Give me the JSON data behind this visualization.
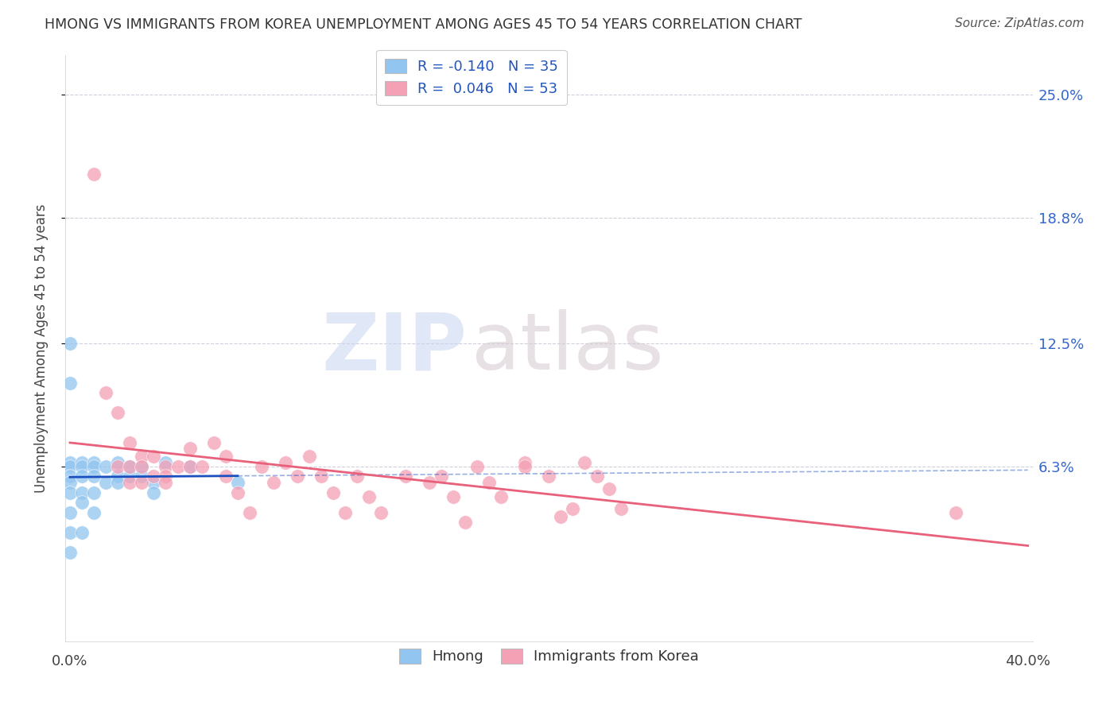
{
  "title": "HMONG VS IMMIGRANTS FROM KOREA UNEMPLOYMENT AMONG AGES 45 TO 54 YEARS CORRELATION CHART",
  "source": "Source: ZipAtlas.com",
  "ylabel": "Unemployment Among Ages 45 to 54 years",
  "ytick_labels": [
    "25.0%",
    "18.8%",
    "12.5%",
    "6.3%"
  ],
  "ytick_values": [
    0.25,
    0.188,
    0.125,
    0.063
  ],
  "xlim": [
    0.0,
    0.4
  ],
  "ylim": [
    -0.025,
    0.27
  ],
  "hmong_color": "#92C5F0",
  "korea_color": "#F4A0B5",
  "trend_hmong_color": "#1A4FBF",
  "trend_korea_color": "#E8607A",
  "background_color": "#FFFFFF",
  "watermark_zip": "ZIP",
  "watermark_atlas": "atlas",
  "hmong_x": [
    0.0,
    0.0,
    0.0,
    0.0,
    0.0,
    0.0,
    0.0,
    0.0,
    0.0,
    0.0,
    0.005,
    0.005,
    0.005,
    0.005,
    0.005,
    0.005,
    0.01,
    0.01,
    0.01,
    0.01,
    0.01,
    0.015,
    0.015,
    0.02,
    0.02,
    0.02,
    0.025,
    0.025,
    0.03,
    0.03,
    0.035,
    0.035,
    0.04,
    0.05,
    0.07
  ],
  "hmong_y": [
    0.125,
    0.105,
    0.065,
    0.063,
    0.058,
    0.055,
    0.05,
    0.04,
    0.03,
    0.02,
    0.065,
    0.063,
    0.058,
    0.05,
    0.045,
    0.03,
    0.065,
    0.063,
    0.058,
    0.05,
    0.04,
    0.063,
    0.055,
    0.065,
    0.058,
    0.055,
    0.063,
    0.058,
    0.063,
    0.058,
    0.055,
    0.05,
    0.065,
    0.063,
    0.055
  ],
  "korea_x": [
    0.01,
    0.015,
    0.02,
    0.02,
    0.025,
    0.025,
    0.025,
    0.03,
    0.03,
    0.03,
    0.035,
    0.035,
    0.04,
    0.04,
    0.04,
    0.045,
    0.05,
    0.05,
    0.055,
    0.06,
    0.065,
    0.065,
    0.07,
    0.075,
    0.08,
    0.085,
    0.09,
    0.095,
    0.1,
    0.105,
    0.11,
    0.115,
    0.12,
    0.125,
    0.13,
    0.14,
    0.15,
    0.155,
    0.16,
    0.165,
    0.17,
    0.175,
    0.18,
    0.19,
    0.19,
    0.2,
    0.205,
    0.21,
    0.215,
    0.22,
    0.225,
    0.23,
    0.37
  ],
  "korea_y": [
    0.21,
    0.1,
    0.09,
    0.063,
    0.075,
    0.063,
    0.055,
    0.068,
    0.063,
    0.055,
    0.068,
    0.058,
    0.063,
    0.058,
    0.055,
    0.063,
    0.072,
    0.063,
    0.063,
    0.075,
    0.068,
    0.058,
    0.05,
    0.04,
    0.063,
    0.055,
    0.065,
    0.058,
    0.068,
    0.058,
    0.05,
    0.04,
    0.058,
    0.048,
    0.04,
    0.058,
    0.055,
    0.058,
    0.048,
    0.035,
    0.063,
    0.055,
    0.048,
    0.065,
    0.063,
    0.058,
    0.038,
    0.042,
    0.065,
    0.058,
    0.052,
    0.042,
    0.04
  ],
  "legend_line1": "R = -0.140   N = 35",
  "legend_line2": "R =  0.046   N = 53"
}
